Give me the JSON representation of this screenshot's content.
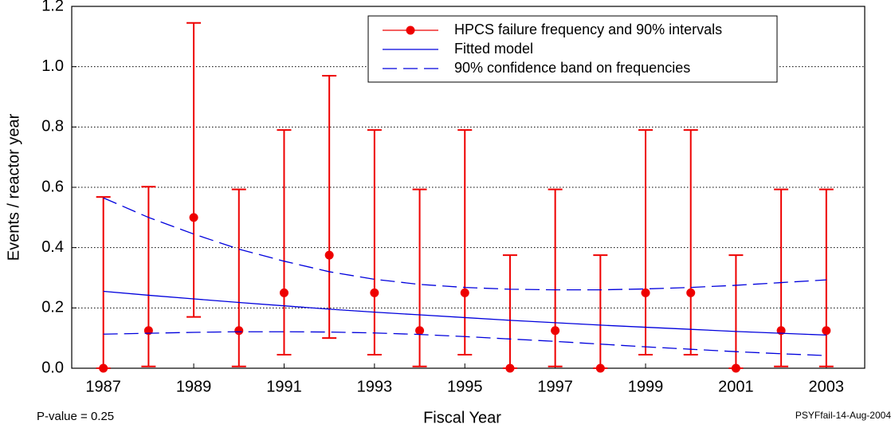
{
  "chart_data": {
    "type": "errorbar",
    "x_label": "Fiscal Year",
    "y_label": "Events / reactor year",
    "annotations": [
      "P-value = 0.25",
      "PSYFfail-14-Aug-2004"
    ],
    "x": [
      1987,
      1988,
      1989,
      1990,
      1991,
      1992,
      1993,
      1994,
      1995,
      1996,
      1997,
      1998,
      1999,
      2000,
      2001,
      2002,
      2003
    ],
    "series": [
      {
        "name": "HPCS failure frequency and 90% intervals",
        "color": "#ee0000",
        "kind": "points",
        "values": [
          0,
          0.125,
          0.5,
          0.125,
          0.25,
          0.375,
          0.25,
          0.125,
          0.25,
          0,
          0.125,
          0,
          0.25,
          0.25,
          0,
          0.125,
          0.125
        ],
        "lower": [
          0,
          0.006,
          0.17,
          0.006,
          0.045,
          0.1,
          0.045,
          0.006,
          0.045,
          0,
          0.006,
          0,
          0.045,
          0.045,
          0,
          0.006,
          0.006
        ],
        "upper": [
          0.568,
          0.602,
          1.145,
          0.593,
          0.79,
          0.97,
          0.79,
          0.593,
          0.79,
          0.375,
          0.593,
          0.375,
          0.79,
          0.79,
          0.375,
          0.593,
          0.593
        ]
      },
      {
        "name": "Fitted model",
        "color": "#0000dd",
        "kind": "line",
        "values": [
          0.255,
          0.242,
          0.23,
          0.218,
          0.207,
          0.196,
          0.186,
          0.177,
          0.168,
          0.159,
          0.151,
          0.143,
          0.136,
          0.129,
          0.122,
          0.116,
          0.11
        ]
      },
      {
        "name": "90% confidence band on frequencies",
        "color": "#0000dd",
        "kind": "band",
        "upper": [
          0.565,
          0.5,
          0.445,
          0.395,
          0.355,
          0.32,
          0.295,
          0.278,
          0.268,
          0.262,
          0.26,
          0.26,
          0.263,
          0.268,
          0.275,
          0.284,
          0.293
        ],
        "lower": [
          0.113,
          0.116,
          0.119,
          0.121,
          0.121,
          0.12,
          0.117,
          0.112,
          0.105,
          0.097,
          0.089,
          0.08,
          0.071,
          0.063,
          0.055,
          0.048,
          0.042
        ]
      }
    ],
    "xlim": [
      1986.3,
      2003.85
    ],
    "xticks": [
      1987,
      1989,
      1991,
      1993,
      1995,
      1997,
      1999,
      2001,
      2003
    ],
    "ylim": [
      0,
      1.2
    ],
    "yticks": [
      {
        "value": 0,
        "label": "0.0"
      },
      {
        "value": 0.2,
        "label": "0.2"
      },
      {
        "value": 0.4,
        "label": "0.4"
      },
      {
        "value": 0.6,
        "label": "0.6"
      },
      {
        "value": 0.8,
        "label": "0.8"
      },
      {
        "value": 1,
        "label": "1.0"
      },
      {
        "value": 1.2,
        "label": "1.2"
      }
    ],
    "grid": true,
    "legend": "upper right"
  }
}
